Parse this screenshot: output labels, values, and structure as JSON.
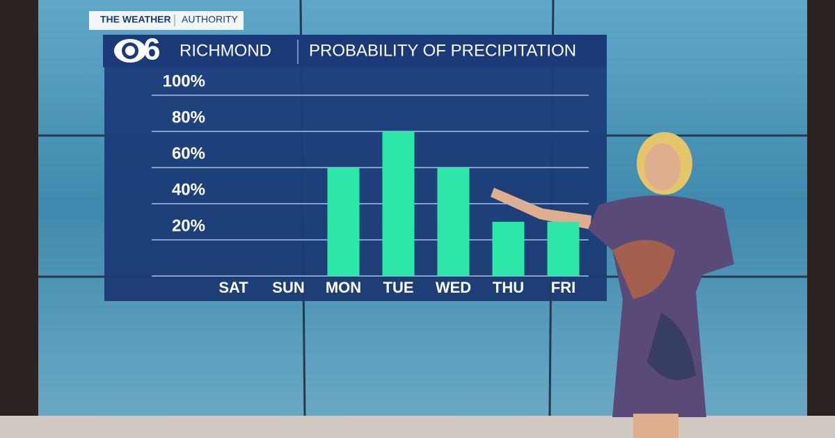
{
  "header": {
    "tag_left": "THE WEATHER",
    "tag_right": "AUTHORITY",
    "logo": "6",
    "station": "RICHMOND"
  },
  "chart_data": {
    "type": "bar",
    "title": "PROBABILITY OF PRECIPITATION",
    "categories": [
      "SAT",
      "SUN",
      "MON",
      "TUE",
      "WED",
      "THU",
      "FRI"
    ],
    "values": [
      0,
      0,
      60,
      80,
      60,
      30,
      30
    ],
    "color": "#2ee8aa",
    "ylim": [
      0,
      100
    ],
    "yticks": [
      {
        "value": 20,
        "label": "20%"
      },
      {
        "value": 40,
        "label": "40%"
      },
      {
        "value": 60,
        "label": "60%"
      },
      {
        "value": 80,
        "label": "80%"
      },
      {
        "value": 100,
        "label": "100%"
      }
    ],
    "grid": true
  }
}
